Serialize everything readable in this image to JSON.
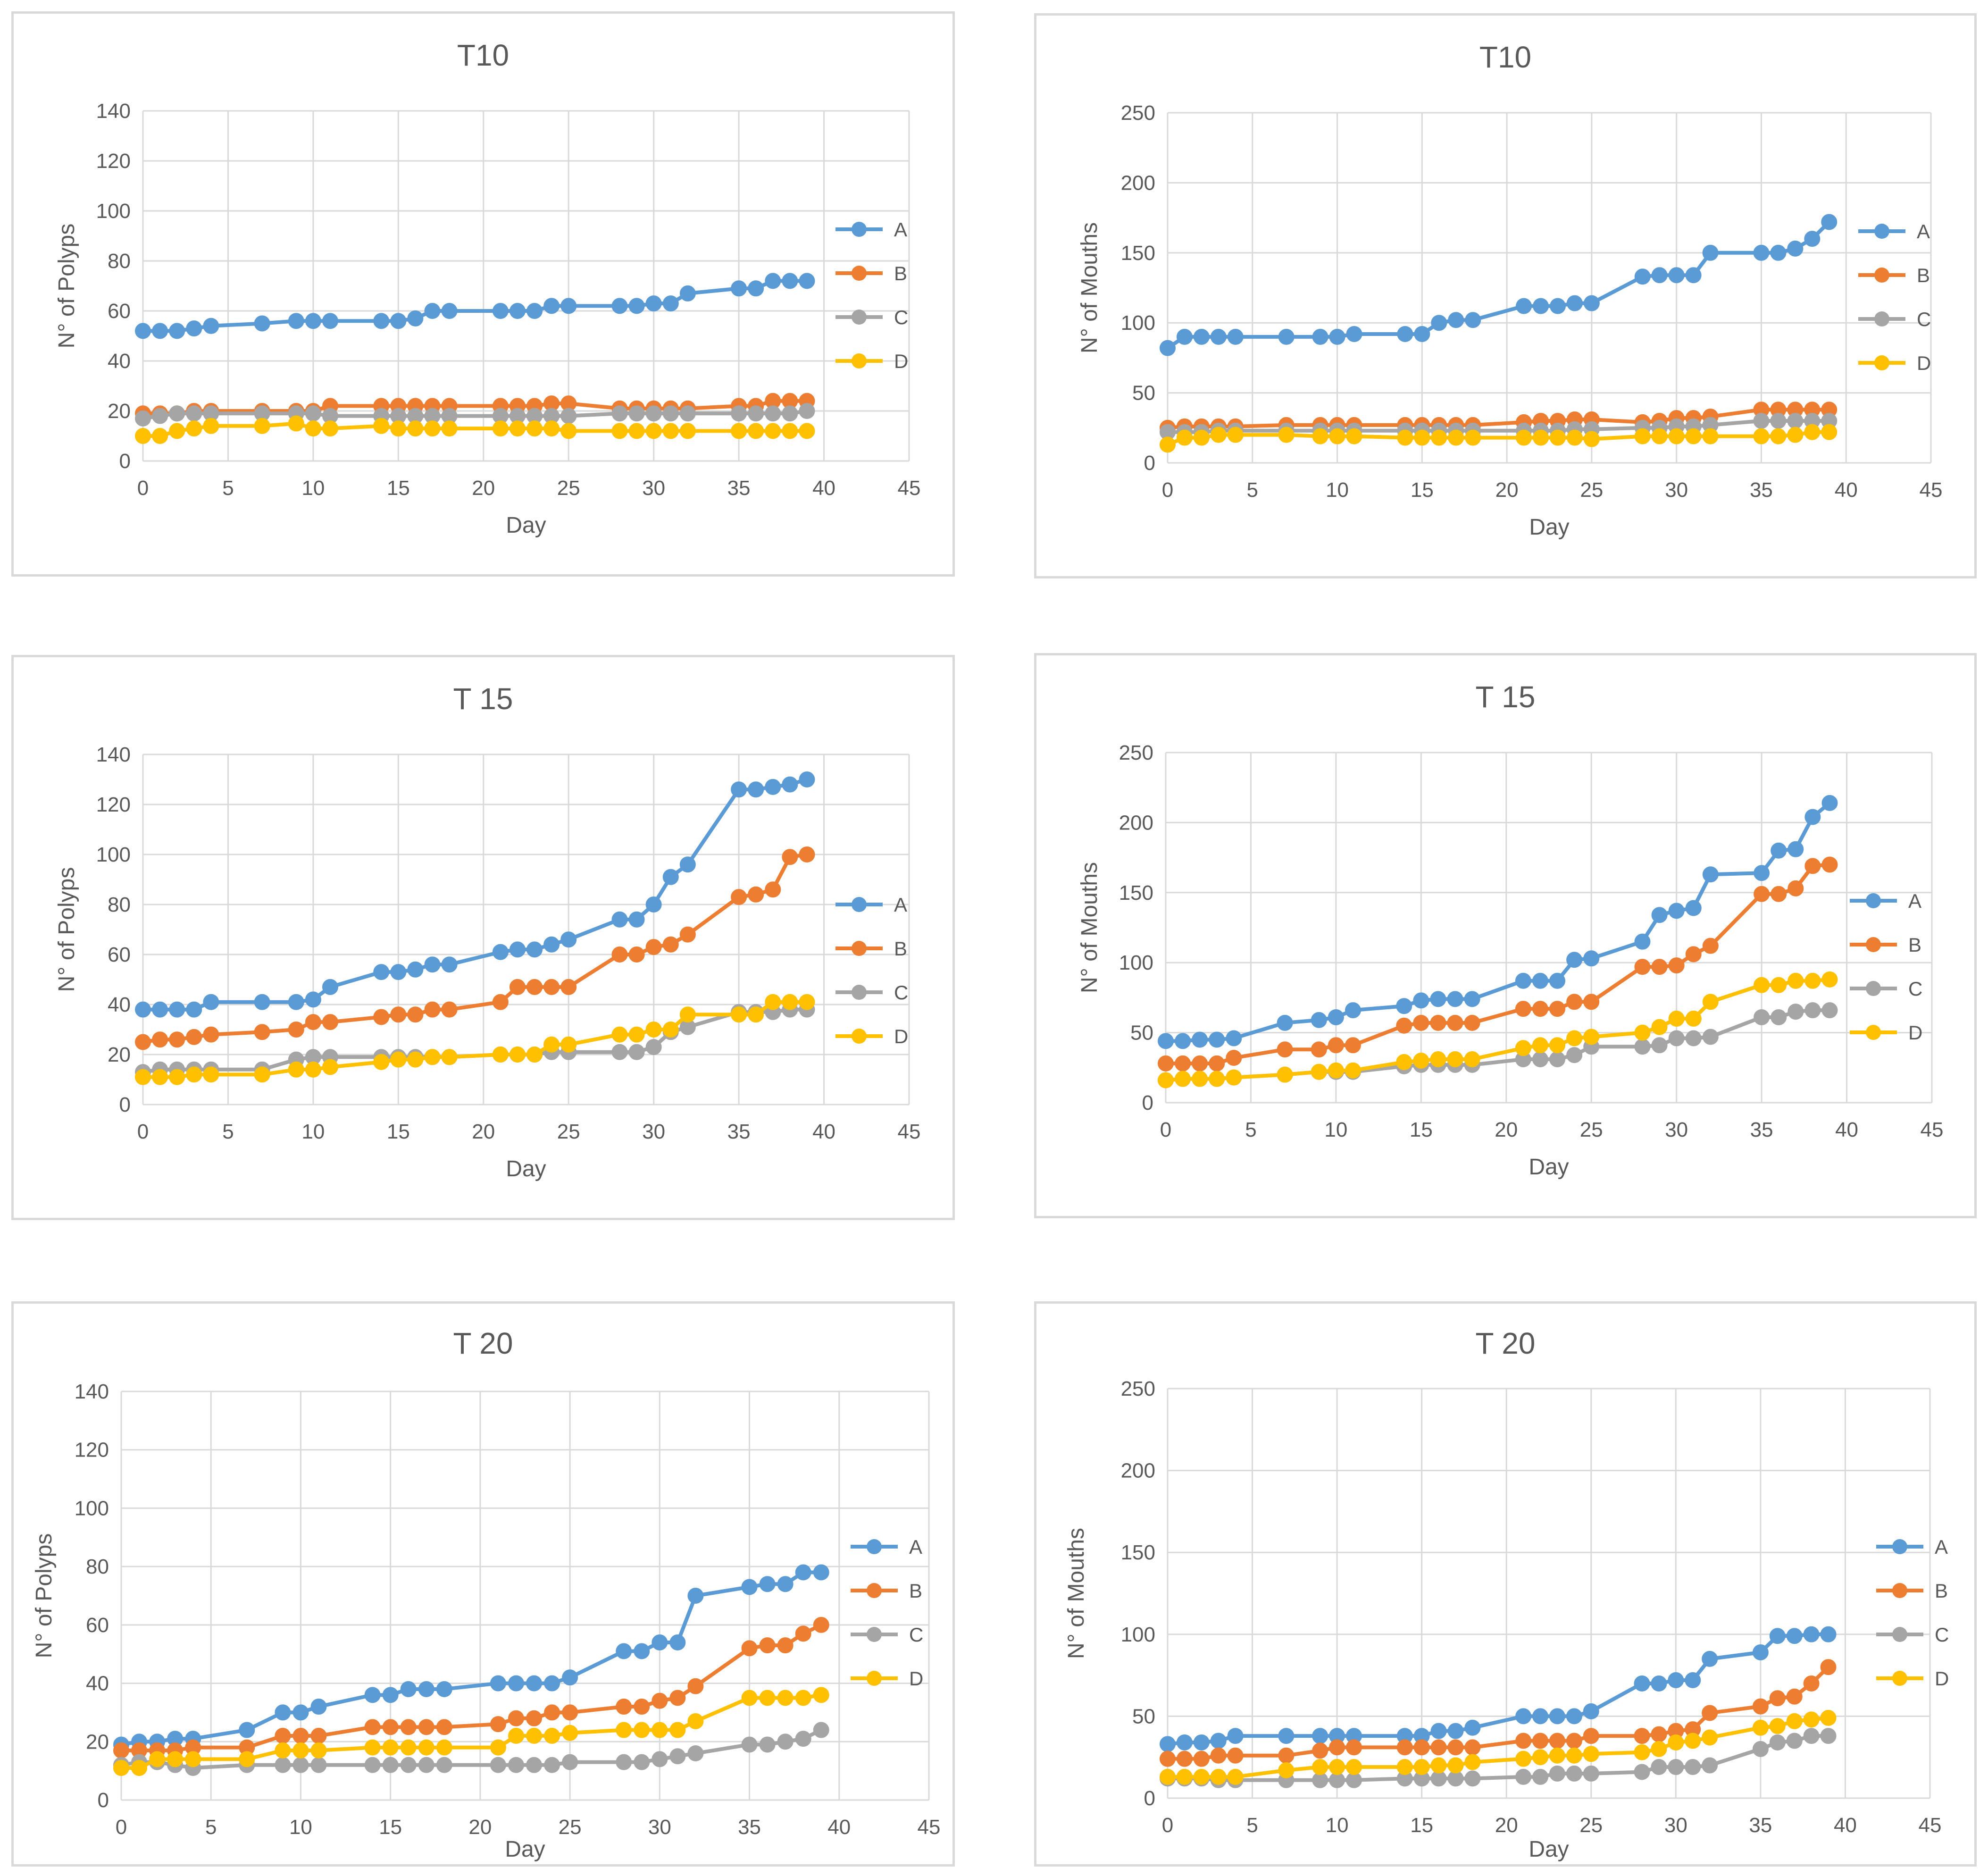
{
  "chart_data": [
    {
      "type": "line",
      "title": "T10",
      "xlabel": "Day",
      "ylabel": "N° of Polyps",
      "xlim": [
        0,
        45
      ],
      "ylim": [
        0,
        140
      ],
      "xticks": [
        0,
        5,
        10,
        15,
        20,
        25,
        30,
        35,
        40,
        45
      ],
      "yticks": [
        0,
        20,
        40,
        60,
        80,
        100,
        120,
        140
      ],
      "grid": true,
      "legend": "right",
      "x": [
        0,
        1,
        2,
        3,
        4,
        7,
        9,
        10,
        11,
        14,
        15,
        16,
        17,
        18,
        21,
        22,
        23,
        24,
        25,
        28,
        29,
        30,
        31,
        32,
        35,
        36,
        37,
        38,
        39
      ],
      "series": [
        {
          "name": "A",
          "color": "#5b9bd5",
          "values": [
            52,
            52,
            52,
            53,
            54,
            55,
            56,
            56,
            56,
            56,
            56,
            57,
            60,
            60,
            60,
            60,
            60,
            62,
            62,
            62,
            62,
            63,
            63,
            67,
            69,
            69,
            72,
            72,
            72
          ]
        },
        {
          "name": "B",
          "color": "#ed7d31",
          "values": [
            19,
            19,
            19,
            20,
            20,
            20,
            20,
            20,
            22,
            22,
            22,
            22,
            22,
            22,
            22,
            22,
            22,
            23,
            23,
            21,
            21,
            21,
            21,
            21,
            22,
            22,
            24,
            24,
            24
          ]
        },
        {
          "name": "C",
          "color": "#a5a5a5",
          "values": [
            17,
            18,
            19,
            19,
            19,
            19,
            19,
            19,
            18,
            18,
            18,
            18,
            18,
            18,
            18,
            18,
            18,
            18,
            18,
            19,
            19,
            19,
            19,
            19,
            19,
            19,
            19,
            19,
            20
          ]
        },
        {
          "name": "D",
          "color": "#ffc000",
          "values": [
            10,
            10,
            12,
            13,
            14,
            14,
            15,
            13,
            13,
            14,
            13,
            13,
            13,
            13,
            13,
            13,
            13,
            13,
            12,
            12,
            12,
            12,
            12,
            12,
            12,
            12,
            12,
            12,
            12
          ]
        }
      ]
    },
    {
      "type": "line",
      "title": "T10",
      "xlabel": "Day",
      "ylabel": "N° of Mouths",
      "xlim": [
        0,
        45
      ],
      "ylim": [
        0,
        250
      ],
      "xticks": [
        0,
        5,
        10,
        15,
        20,
        25,
        30,
        35,
        40,
        45
      ],
      "yticks": [
        0,
        50,
        100,
        150,
        200,
        250
      ],
      "grid": true,
      "legend": "right",
      "x": [
        0,
        1,
        2,
        3,
        4,
        7,
        9,
        10,
        11,
        14,
        15,
        16,
        17,
        18,
        21,
        22,
        23,
        24,
        25,
        28,
        29,
        30,
        31,
        32,
        35,
        36,
        37,
        38,
        39
      ],
      "series": [
        {
          "name": "A",
          "color": "#5b9bd5",
          "values": [
            82,
            90,
            90,
            90,
            90,
            90,
            90,
            90,
            92,
            92,
            92,
            100,
            102,
            102,
            112,
            112,
            112,
            114,
            114,
            133,
            134,
            134,
            134,
            150,
            150,
            150,
            153,
            160,
            172
          ]
        },
        {
          "name": "B",
          "color": "#ed7d31",
          "values": [
            25,
            26,
            26,
            26,
            26,
            27,
            27,
            27,
            27,
            27,
            27,
            27,
            27,
            27,
            29,
            30,
            30,
            31,
            31,
            29,
            30,
            32,
            32,
            33,
            38,
            38,
            38,
            38,
            38
          ]
        },
        {
          "name": "C",
          "color": "#a5a5a5",
          "values": [
            22,
            22,
            22,
            23,
            23,
            23,
            23,
            23,
            23,
            23,
            23,
            23,
            23,
            23,
            23,
            23,
            23,
            24,
            24,
            25,
            25,
            26,
            26,
            27,
            30,
            30,
            30,
            30,
            30
          ]
        },
        {
          "name": "D",
          "color": "#ffc000",
          "values": [
            13,
            18,
            18,
            20,
            20,
            20,
            19,
            19,
            19,
            18,
            18,
            18,
            18,
            18,
            18,
            18,
            18,
            18,
            17,
            19,
            19,
            19,
            19,
            19,
            19,
            19,
            20,
            22,
            22
          ]
        }
      ]
    },
    {
      "type": "line",
      "title": "T 15",
      "xlabel": "Day",
      "ylabel": "N° of Polyps",
      "xlim": [
        0,
        45
      ],
      "ylim": [
        0,
        140
      ],
      "xticks": [
        0,
        5,
        10,
        15,
        20,
        25,
        30,
        35,
        40,
        45
      ],
      "yticks": [
        0,
        20,
        40,
        60,
        80,
        100,
        120,
        140
      ],
      "grid": true,
      "legend": "right",
      "x": [
        0,
        1,
        2,
        3,
        4,
        7,
        9,
        10,
        11,
        14,
        15,
        16,
        17,
        18,
        21,
        22,
        23,
        24,
        25,
        28,
        29,
        30,
        31,
        32,
        35,
        36,
        37,
        38,
        39
      ],
      "series": [
        {
          "name": "A",
          "color": "#5b9bd5",
          "values": [
            38,
            38,
            38,
            38,
            41,
            41,
            41,
            42,
            47,
            53,
            53,
            54,
            56,
            56,
            61,
            62,
            62,
            64,
            66,
            74,
            74,
            80,
            91,
            96,
            126,
            126,
            127,
            128,
            130
          ]
        },
        {
          "name": "B",
          "color": "#ed7d31",
          "values": [
            25,
            26,
            26,
            27,
            28,
            29,
            30,
            33,
            33,
            35,
            36,
            36,
            38,
            38,
            41,
            47,
            47,
            47,
            47,
            60,
            60,
            63,
            64,
            68,
            83,
            84,
            86,
            99,
            100
          ]
        },
        {
          "name": "C",
          "color": "#a5a5a5",
          "values": [
            13,
            14,
            14,
            14,
            14,
            14,
            18,
            19,
            19,
            19,
            19,
            19,
            19,
            19,
            20,
            20,
            20,
            21,
            21,
            21,
            21,
            23,
            29,
            31,
            37,
            37,
            37,
            38,
            38
          ]
        },
        {
          "name": "D",
          "color": "#ffc000",
          "values": [
            11,
            11,
            11,
            12,
            12,
            12,
            14,
            14,
            15,
            17,
            18,
            18,
            19,
            19,
            20,
            20,
            20,
            24,
            24,
            28,
            28,
            30,
            30,
            36,
            36,
            36,
            41,
            41,
            41
          ]
        }
      ]
    },
    {
      "type": "line",
      "title": "T 15",
      "xlabel": "Day",
      "ylabel": "N° of Mouths",
      "xlim": [
        0,
        45
      ],
      "ylim": [
        0,
        250
      ],
      "xticks": [
        0,
        5,
        10,
        15,
        20,
        25,
        30,
        35,
        40,
        45
      ],
      "yticks": [
        0,
        50,
        100,
        150,
        200,
        250
      ],
      "grid": true,
      "legend": "right",
      "x": [
        0,
        1,
        2,
        3,
        4,
        7,
        9,
        10,
        11,
        14,
        15,
        16,
        17,
        18,
        21,
        22,
        23,
        24,
        25,
        28,
        29,
        30,
        31,
        32,
        35,
        36,
        37,
        38,
        39
      ],
      "series": [
        {
          "name": "A",
          "color": "#5b9bd5",
          "values": [
            44,
            44,
            45,
            45,
            46,
            57,
            59,
            61,
            66,
            69,
            73,
            74,
            74,
            74,
            87,
            87,
            87,
            102,
            103,
            115,
            134,
            137,
            139,
            163,
            164,
            180,
            181,
            204,
            214
          ]
        },
        {
          "name": "B",
          "color": "#ed7d31",
          "values": [
            28,
            28,
            28,
            28,
            32,
            38,
            38,
            41,
            41,
            55,
            57,
            57,
            57,
            57,
            67,
            67,
            67,
            72,
            72,
            97,
            97,
            98,
            106,
            112,
            149,
            149,
            153,
            169,
            170
          ]
        },
        {
          "name": "C",
          "color": "#a5a5a5",
          "values": [
            16,
            17,
            17,
            17,
            18,
            20,
            22,
            22,
            22,
            26,
            27,
            27,
            27,
            27,
            31,
            31,
            31,
            34,
            40,
            40,
            41,
            46,
            46,
            47,
            61,
            61,
            65,
            66,
            66
          ]
        },
        {
          "name": "D",
          "color": "#ffc000",
          "values": [
            16,
            17,
            17,
            17,
            18,
            20,
            22,
            23,
            23,
            29,
            30,
            31,
            31,
            31,
            39,
            41,
            41,
            46,
            47,
            50,
            54,
            60,
            60,
            72,
            84,
            84,
            87,
            87,
            88
          ]
        }
      ]
    },
    {
      "type": "line",
      "title": "T 20",
      "xlabel": "Day",
      "ylabel": "N° of Polyps",
      "xlim": [
        0,
        45
      ],
      "ylim": [
        0,
        140
      ],
      "xticks": [
        0,
        5,
        10,
        15,
        20,
        25,
        30,
        35,
        40,
        45
      ],
      "yticks": [
        0,
        20,
        40,
        60,
        80,
        100,
        120,
        140
      ],
      "grid": true,
      "legend": "right",
      "x": [
        0,
        1,
        2,
        3,
        4,
        7,
        9,
        10,
        11,
        14,
        15,
        16,
        17,
        18,
        21,
        22,
        23,
        24,
        25,
        28,
        29,
        30,
        31,
        32,
        35,
        36,
        37,
        38,
        39
      ],
      "series": [
        {
          "name": "A",
          "color": "#5b9bd5",
          "values": [
            19,
            20,
            20,
            21,
            21,
            24,
            30,
            30,
            32,
            36,
            36,
            38,
            38,
            38,
            40,
            40,
            40,
            40,
            42,
            51,
            51,
            54,
            54,
            70,
            73,
            74,
            74,
            78,
            78
          ]
        },
        {
          "name": "B",
          "color": "#ed7d31",
          "values": [
            17,
            17,
            17,
            17,
            18,
            18,
            22,
            22,
            22,
            25,
            25,
            25,
            25,
            25,
            26,
            28,
            28,
            30,
            30,
            32,
            32,
            34,
            35,
            39,
            52,
            53,
            53,
            57,
            60
          ]
        },
        {
          "name": "C",
          "color": "#a5a5a5",
          "values": [
            12,
            13,
            13,
            12,
            11,
            12,
            12,
            12,
            12,
            12,
            12,
            12,
            12,
            12,
            12,
            12,
            12,
            12,
            13,
            13,
            13,
            14,
            15,
            16,
            19,
            19,
            20,
            21,
            24
          ]
        },
        {
          "name": "D",
          "color": "#ffc000",
          "values": [
            11,
            11,
            14,
            14,
            14,
            14,
            17,
            17,
            17,
            18,
            18,
            18,
            18,
            18,
            18,
            22,
            22,
            22,
            23,
            24,
            24,
            24,
            24,
            27,
            35,
            35,
            35,
            35,
            36
          ]
        }
      ]
    },
    {
      "type": "line",
      "title": "T 20",
      "xlabel": "Day",
      "ylabel": "N° of Mouths",
      "xlim": [
        0,
        45
      ],
      "ylim": [
        0,
        250
      ],
      "xticks": [
        0,
        5,
        10,
        15,
        20,
        25,
        30,
        35,
        40,
        45
      ],
      "yticks": [
        0,
        50,
        100,
        150,
        200,
        250
      ],
      "grid": true,
      "legend": "right",
      "x": [
        0,
        1,
        2,
        3,
        4,
        7,
        9,
        10,
        11,
        14,
        15,
        16,
        17,
        18,
        21,
        22,
        23,
        24,
        25,
        28,
        29,
        30,
        31,
        32,
        35,
        36,
        37,
        38,
        39
      ],
      "series": [
        {
          "name": "A",
          "color": "#5b9bd5",
          "values": [
            33,
            34,
            34,
            35,
            38,
            38,
            38,
            38,
            38,
            38,
            38,
            41,
            41,
            43,
            50,
            50,
            50,
            50,
            53,
            70,
            70,
            72,
            72,
            85,
            89,
            99,
            99,
            100,
            100
          ]
        },
        {
          "name": "B",
          "color": "#ed7d31",
          "values": [
            24,
            24,
            24,
            26,
            26,
            26,
            29,
            31,
            31,
            31,
            31,
            31,
            31,
            31,
            35,
            35,
            35,
            35,
            38,
            38,
            39,
            41,
            42,
            52,
            56,
            61,
            62,
            70,
            80
          ]
        },
        {
          "name": "C",
          "color": "#a5a5a5",
          "values": [
            12,
            12,
            12,
            11,
            11,
            11,
            11,
            11,
            11,
            12,
            12,
            12,
            12,
            12,
            13,
            13,
            15,
            15,
            15,
            16,
            19,
            19,
            19,
            20,
            30,
            34,
            35,
            38,
            38
          ]
        },
        {
          "name": "D",
          "color": "#ffc000",
          "values": [
            13,
            13,
            13,
            13,
            13,
            17,
            19,
            19,
            19,
            19,
            19,
            20,
            20,
            22,
            24,
            25,
            26,
            26,
            27,
            28,
            30,
            34,
            35,
            37,
            43,
            44,
            47,
            48,
            49
          ]
        }
      ]
    }
  ]
}
